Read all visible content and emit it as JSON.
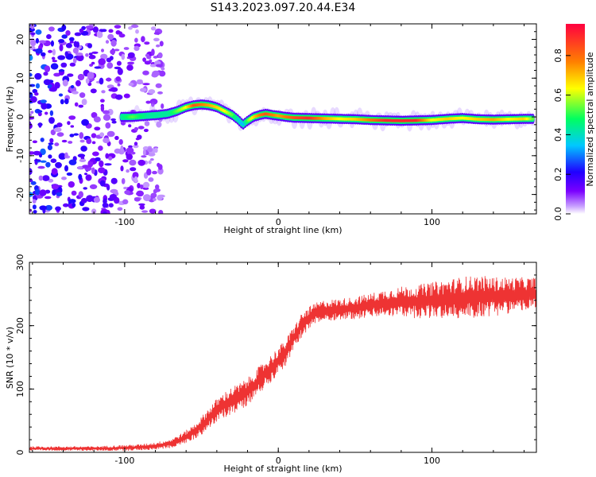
{
  "title": "S143.2023.097.20.44.E34",
  "chart_data": [
    {
      "type": "heatmap",
      "xlabel": "Height of straight line (km)",
      "ylabel": "Frequency (Hz)",
      "xlim": [
        -162,
        168
      ],
      "ylim": [
        -25,
        24
      ],
      "xticks": [
        -100,
        0,
        100
      ],
      "yticks": [
        -20,
        -10,
        0,
        10,
        20
      ],
      "colorbar": {
        "label": "Normalized spectral amplitude",
        "range": [
          0,
          1
        ],
        "ticks": [
          "0.0",
          "0.2",
          "0.4",
          "0.6",
          "0.8"
        ],
        "colors": [
          "#ffffff",
          "#7a00ff",
          "#0000ff",
          "#00c8ff",
          "#00ff60",
          "#ffff00",
          "#ff8000",
          "#ff0040"
        ]
      },
      "noise_region_km": [
        -162,
        -75
      ],
      "ridge": {
        "x": [
          -102,
          -95,
          -85,
          -78,
          -72,
          -66,
          -60,
          -55,
          -50,
          -45,
          -40,
          -35,
          -30,
          -26,
          -23,
          -20,
          -16,
          -12,
          -8,
          -4,
          0,
          5,
          10,
          20,
          30,
          40,
          50,
          60,
          70,
          80,
          90,
          100,
          110,
          120,
          130,
          140,
          150,
          160,
          166
        ],
        "y": [
          0,
          0,
          0.3,
          0.5,
          0.8,
          1.5,
          2.5,
          3,
          3.2,
          3,
          2.5,
          1.5,
          0.5,
          -0.8,
          -2,
          -1,
          0,
          0.5,
          0.8,
          0.5,
          0.3,
          0,
          -0.2,
          -0.3,
          -0.4,
          -0.5,
          -0.6,
          -0.8,
          -0.9,
          -1,
          -0.9,
          -0.8,
          -0.5,
          -0.3,
          -0.6,
          -0.7,
          -0.6,
          -0.5,
          -0.5
        ],
        "amplitude": [
          0.5,
          0.6,
          0.5,
          0.5,
          0.5,
          0.6,
          0.7,
          0.9,
          0.85,
          0.8,
          0.75,
          0.7,
          0.6,
          0.45,
          0.4,
          0.6,
          0.75,
          0.85,
          0.9,
          0.85,
          0.8,
          0.85,
          0.9,
          0.95,
          0.8,
          0.7,
          0.75,
          0.85,
          0.95,
          0.95,
          0.95,
          0.7,
          0.75,
          0.7,
          0.75,
          0.8,
          0.7,
          0.75,
          0.6
        ]
      }
    },
    {
      "type": "line",
      "xlabel": "Height of straight line (km)",
      "ylabel": "SNR (10 * v/v)",
      "xlim": [
        -162,
        168
      ],
      "ylim": [
        0,
        300
      ],
      "xticks": [
        -100,
        0,
        100
      ],
      "yticks": [
        0,
        100,
        200,
        300
      ],
      "series": [
        {
          "color": "#ee3333",
          "x": [
            -162,
            -140,
            -120,
            -100,
            -90,
            -80,
            -70,
            -62,
            -55,
            -50,
            -45,
            -40,
            -35,
            -30,
            -25,
            -20,
            -15,
            -10,
            -5,
            0,
            5,
            10,
            15,
            20,
            25,
            30,
            40,
            50,
            60,
            70,
            80,
            90,
            100,
            110,
            120,
            130,
            140,
            150,
            160,
            168
          ],
          "y": [
            6,
            6,
            6,
            7,
            8,
            10,
            14,
            22,
            32,
            42,
            55,
            66,
            75,
            82,
            88,
            96,
            108,
            120,
            132,
            145,
            158,
            180,
            200,
            212,
            220,
            224,
            226,
            228,
            232,
            236,
            238,
            238,
            240,
            242,
            244,
            246,
            246,
            248,
            250,
            250
          ],
          "noise": [
            3,
            3,
            3,
            4,
            4,
            5,
            6,
            8,
            10,
            12,
            14,
            16,
            17,
            18,
            18,
            18,
            18,
            18,
            18,
            18,
            18,
            16,
            16,
            15,
            14,
            14,
            14,
            15,
            16,
            18,
            20,
            22,
            24,
            26,
            28,
            28,
            26,
            24,
            22,
            22
          ]
        }
      ]
    }
  ]
}
